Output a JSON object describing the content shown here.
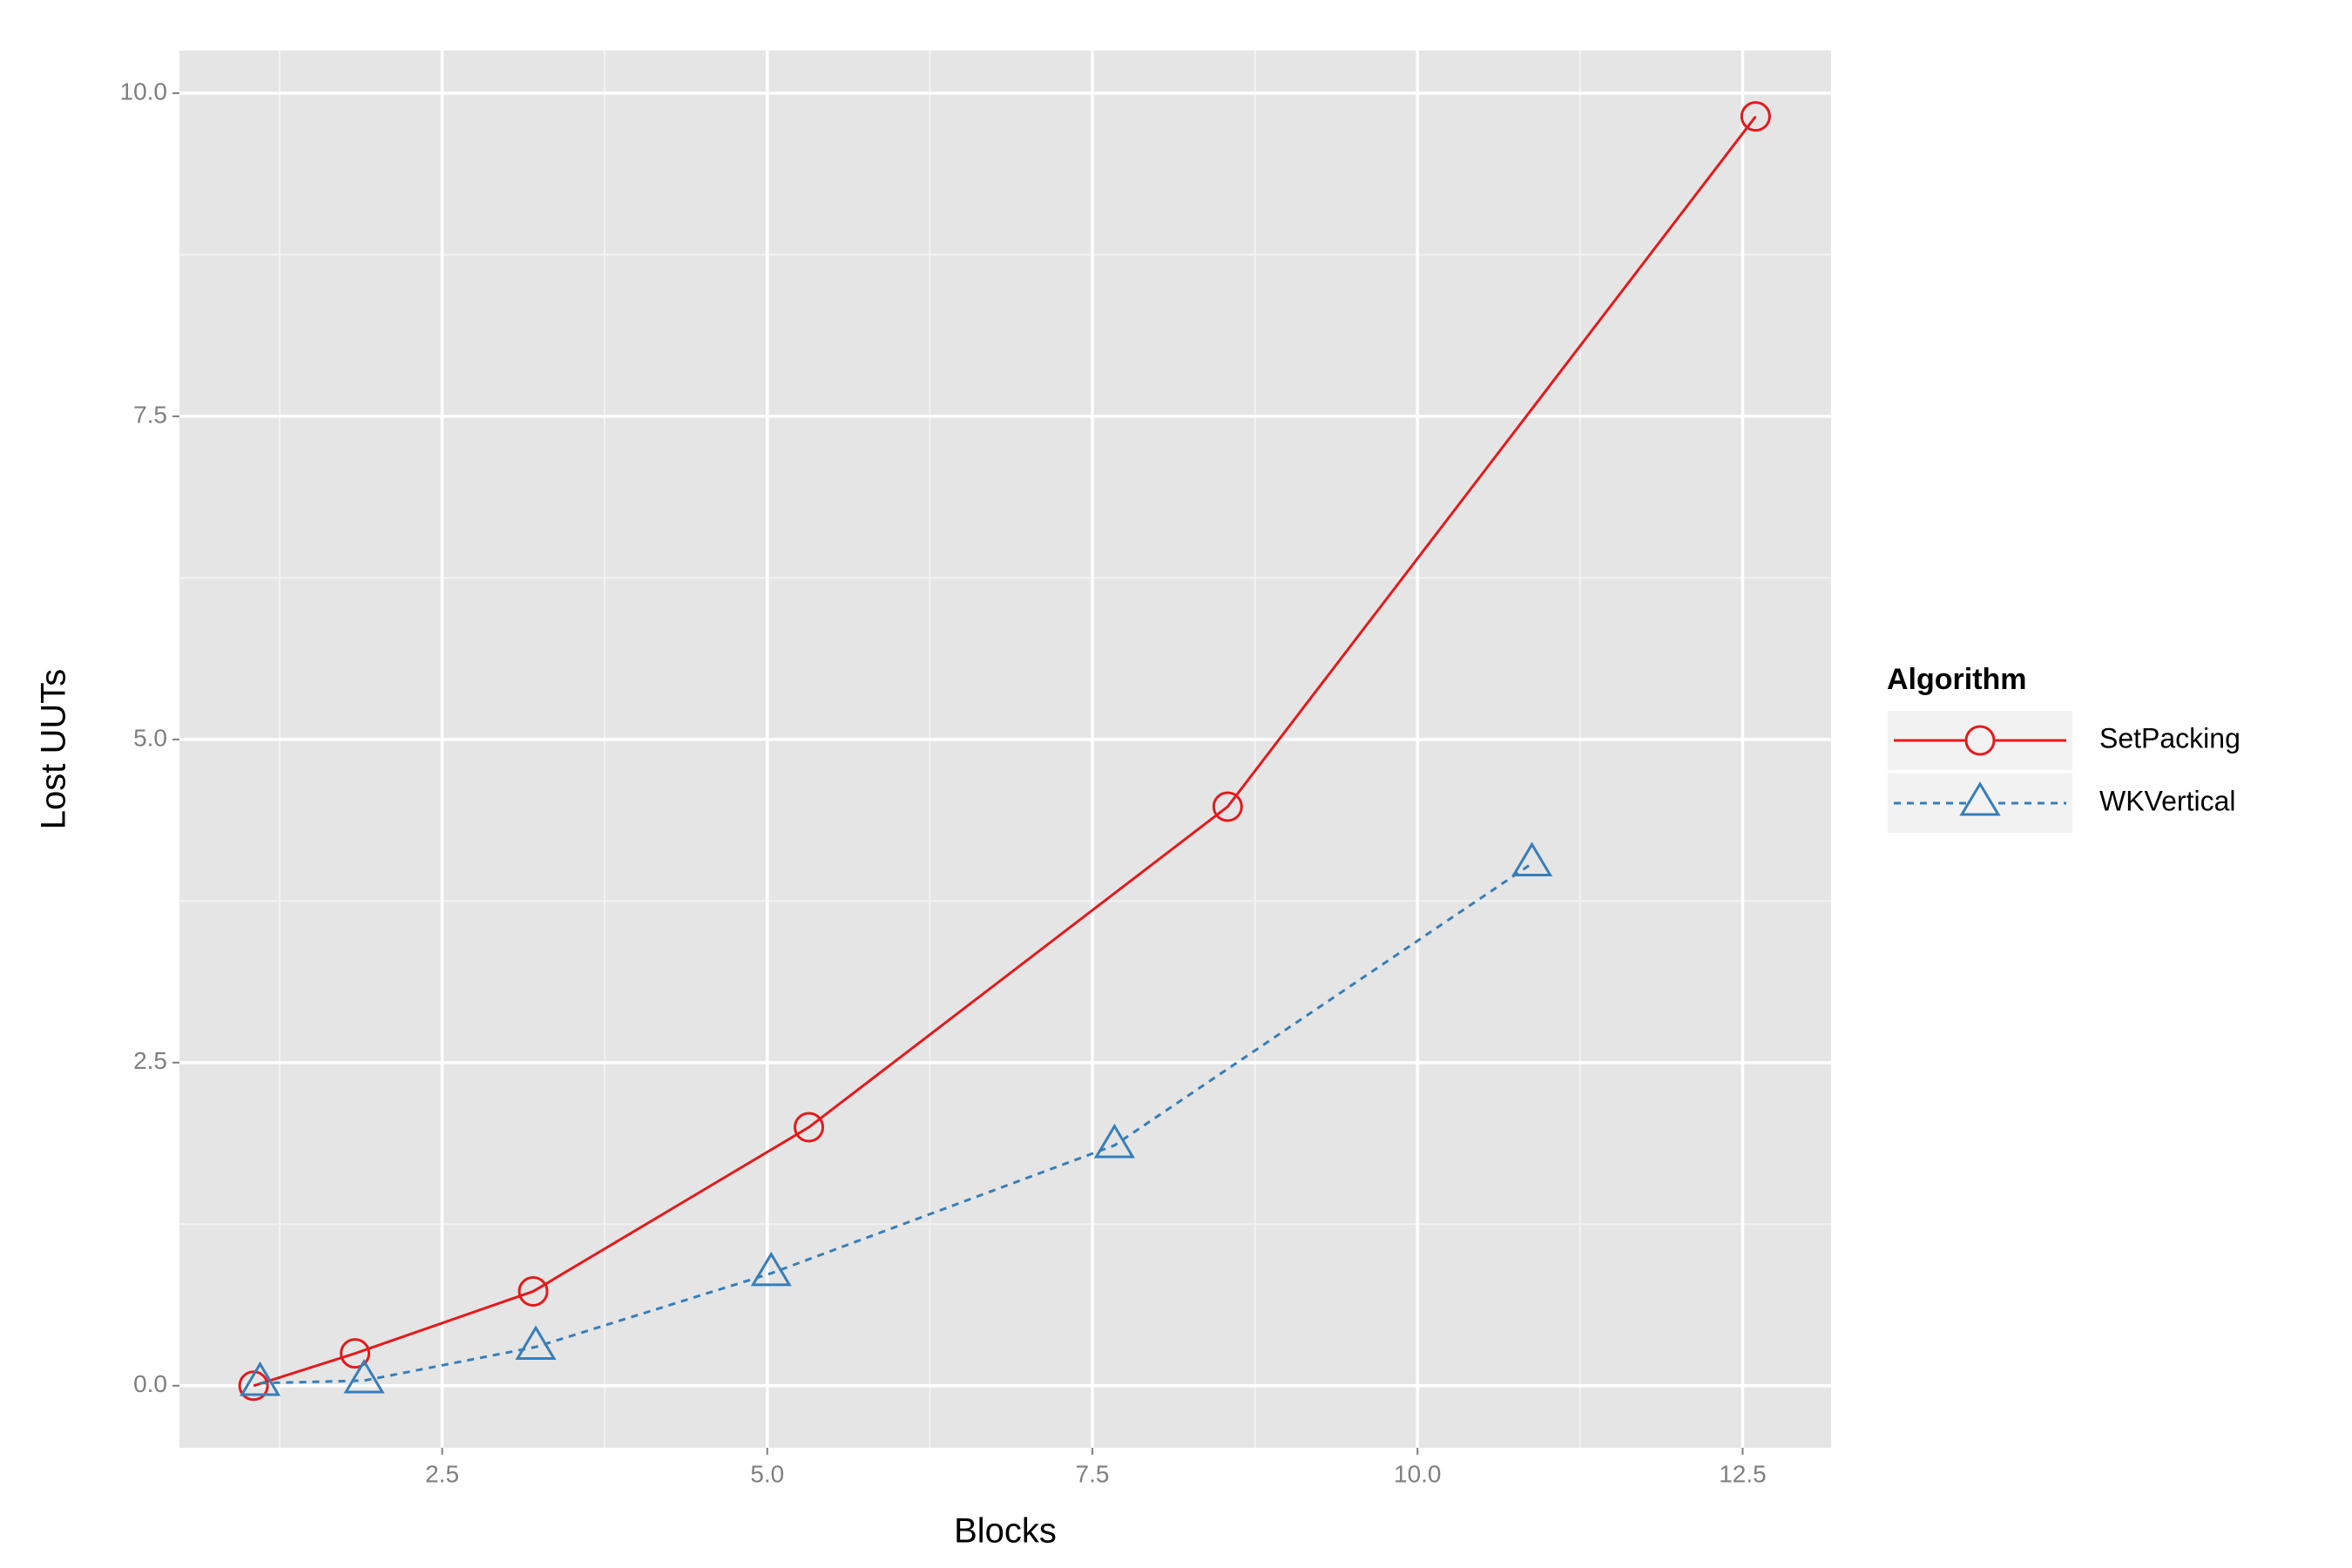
{
  "chart_data": {
    "type": "line",
    "x_label": "Blocks",
    "y_label": "Lost UUTs",
    "legend_title": "Algorithm",
    "legend_position": "right",
    "grid": true,
    "xlim": [
      0.48,
      13.18
    ],
    "ylim": [
      -0.48,
      10.33
    ],
    "xticks": [
      2.5,
      5.0,
      7.5,
      10.0,
      12.5
    ],
    "yticks": [
      0.0,
      2.5,
      5.0,
      7.5,
      10.0
    ],
    "series": [
      {
        "name": "SetPacking",
        "color": "#e41a1c",
        "linestyle": "solid",
        "marker": "circle",
        "x": [
          1.05,
          1.83,
          3.2,
          5.32,
          8.54,
          12.6
        ],
        "values": [
          0,
          0.25,
          0.73,
          2.0,
          4.48,
          9.82
        ]
      },
      {
        "name": "WKVertical",
        "color": "#377eb8",
        "linestyle": "dashed",
        "marker": "triangle",
        "x": [
          1.1,
          1.9,
          3.22,
          5.03,
          7.67,
          10.88
        ],
        "values": [
          0.02,
          0.04,
          0.3,
          0.87,
          1.86,
          4.04
        ]
      }
    ]
  }
}
